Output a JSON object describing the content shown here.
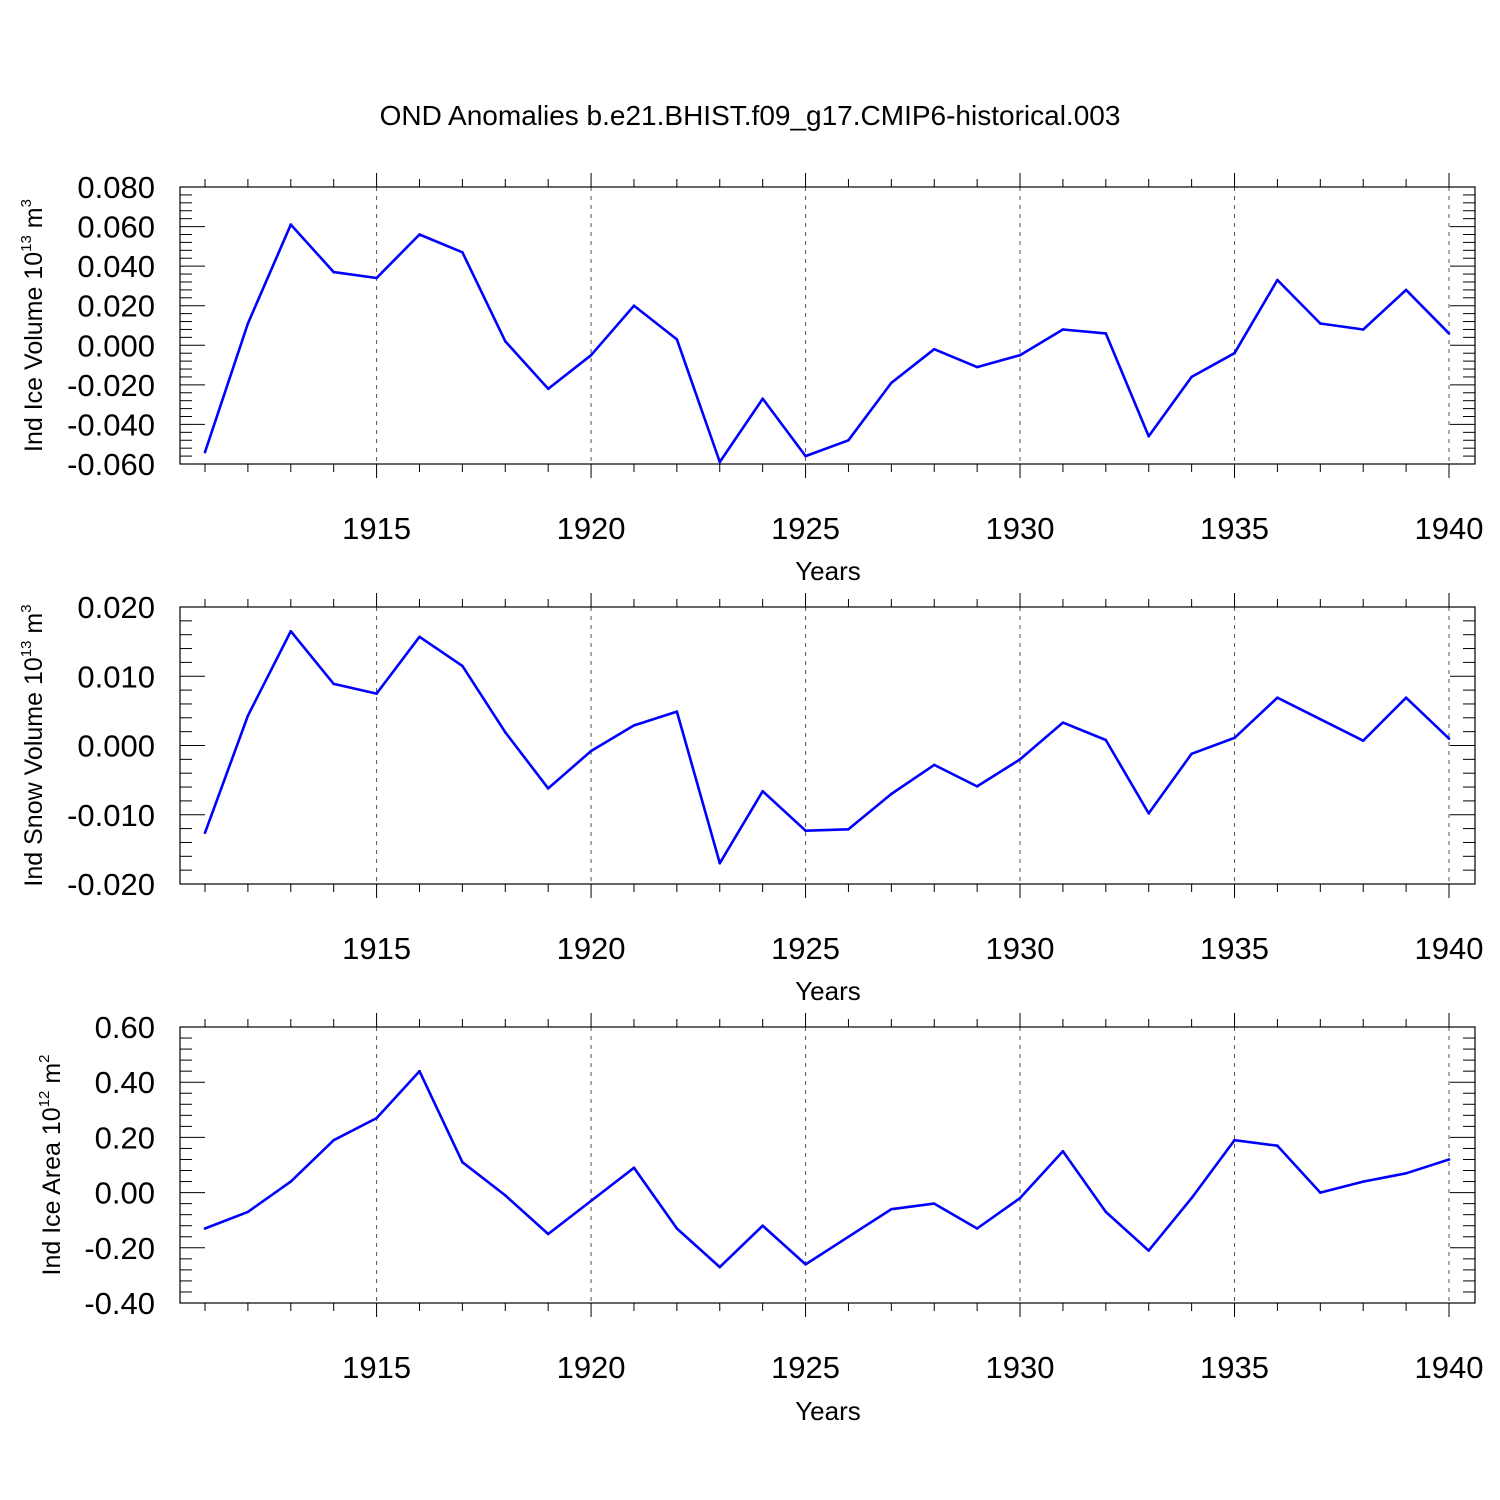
{
  "title": "OND Anomalies b.e21.BHIST.f09_g17.CMIP6-historical.003",
  "colors": {
    "line": "#0000ff",
    "axis": "#000000",
    "grid": "#555555",
    "background": "#ffffff"
  },
  "chart_data": [
    {
      "type": "line",
      "xlabel": "Years",
      "ylabel": {
        "prefix": "Ind Ice Volume 10",
        "exp": "13",
        "unit": " m",
        "unit_exp": "3"
      },
      "xlim": [
        1911,
        1940
      ],
      "ylim": [
        -0.06,
        0.08
      ],
      "yticks": [
        -0.06,
        -0.04,
        -0.02,
        0.0,
        0.02,
        0.04,
        0.06,
        0.08
      ],
      "ytick_labels": [
        "-0.060",
        "-0.040",
        "-0.020",
        "0.000",
        "0.020",
        "0.040",
        "0.060",
        "0.080"
      ],
      "xticks": [
        1915,
        1920,
        1925,
        1930,
        1935,
        1940
      ],
      "xtick_labels": [
        "1915",
        "1920",
        "1925",
        "1930",
        "1935",
        "1940"
      ],
      "grid": "vertical dashed at major x ticks",
      "x": [
        1911,
        1912,
        1913,
        1914,
        1915,
        1916,
        1917,
        1918,
        1919,
        1920,
        1921,
        1922,
        1923,
        1924,
        1925,
        1926,
        1927,
        1928,
        1929,
        1930,
        1931,
        1932,
        1933,
        1934,
        1935,
        1936,
        1937,
        1938,
        1939,
        1940
      ],
      "y": [
        -0.054,
        0.011,
        0.061,
        0.037,
        0.034,
        0.056,
        0.047,
        0.002,
        -0.022,
        -0.005,
        0.02,
        0.003,
        -0.059,
        -0.027,
        -0.056,
        -0.048,
        -0.019,
        -0.002,
        -0.011,
        -0.005,
        0.008,
        0.006,
        -0.046,
        -0.016,
        -0.004,
        0.033,
        0.011,
        0.008,
        0.028,
        0.006
      ]
    },
    {
      "type": "line",
      "xlabel": "Years",
      "ylabel": {
        "prefix": "Ind Snow Volume 10",
        "exp": "13",
        "unit": " m",
        "unit_exp": "3"
      },
      "xlim": [
        1911,
        1940
      ],
      "ylim": [
        -0.02,
        0.02
      ],
      "yticks": [
        -0.02,
        -0.01,
        0.0,
        0.01,
        0.02
      ],
      "ytick_labels": [
        "-0.020",
        "-0.010",
        "0.000",
        "0.010",
        "0.020"
      ],
      "xticks": [
        1915,
        1920,
        1925,
        1930,
        1935,
        1940
      ],
      "xtick_labels": [
        "1915",
        "1920",
        "1925",
        "1930",
        "1935",
        "1940"
      ],
      "grid": "vertical dashed at major x ticks",
      "x": [
        1911,
        1912,
        1913,
        1914,
        1915,
        1916,
        1917,
        1918,
        1919,
        1920,
        1921,
        1922,
        1923,
        1924,
        1925,
        1926,
        1927,
        1928,
        1929,
        1930,
        1931,
        1932,
        1933,
        1934,
        1935,
        1936,
        1937,
        1938,
        1939,
        1940
      ],
      "y": [
        -0.0126,
        0.0043,
        0.0165,
        0.0089,
        0.0075,
        0.0157,
        0.0115,
        0.0019,
        -0.0062,
        -0.0008,
        0.0029,
        0.0049,
        -0.017,
        -0.0066,
        -0.0123,
        -0.0121,
        -0.007,
        -0.0028,
        -0.0059,
        -0.002,
        0.0033,
        0.0008,
        -0.0098,
        -0.0012,
        0.0011,
        0.0069,
        0.0038,
        0.0007,
        0.0069,
        0.001
      ]
    },
    {
      "type": "line",
      "xlabel": "Years",
      "ylabel": {
        "prefix": "Ind Ice Area 10",
        "exp": "12",
        "unit": " m",
        "unit_exp": "2"
      },
      "xlim": [
        1911,
        1940
      ],
      "ylim": [
        -0.4,
        0.6
      ],
      "yticks": [
        -0.4,
        -0.2,
        0.0,
        0.2,
        0.4,
        0.6
      ],
      "ytick_labels": [
        "-0.40",
        "-0.20",
        "0.00",
        "0.20",
        "0.40",
        "0.60"
      ],
      "xticks": [
        1915,
        1920,
        1925,
        1930,
        1935,
        1940
      ],
      "xtick_labels": [
        "1915",
        "1920",
        "1925",
        "1930",
        "1935",
        "1940"
      ],
      "grid": "vertical dashed at major x ticks",
      "x": [
        1911,
        1912,
        1913,
        1914,
        1915,
        1916,
        1917,
        1918,
        1919,
        1920,
        1921,
        1922,
        1923,
        1924,
        1925,
        1926,
        1927,
        1928,
        1929,
        1930,
        1931,
        1932,
        1933,
        1934,
        1935,
        1936,
        1937,
        1938,
        1939,
        1940
      ],
      "y": [
        -0.13,
        -0.07,
        0.04,
        0.19,
        0.27,
        0.44,
        0.11,
        -0.01,
        -0.15,
        -0.03,
        0.09,
        -0.13,
        -0.27,
        -0.12,
        -0.26,
        -0.16,
        -0.06,
        -0.04,
        -0.13,
        -0.02,
        0.15,
        -0.07,
        -0.21,
        -0.02,
        0.19,
        0.17,
        0.0,
        0.04,
        0.07,
        0.12
      ]
    }
  ]
}
